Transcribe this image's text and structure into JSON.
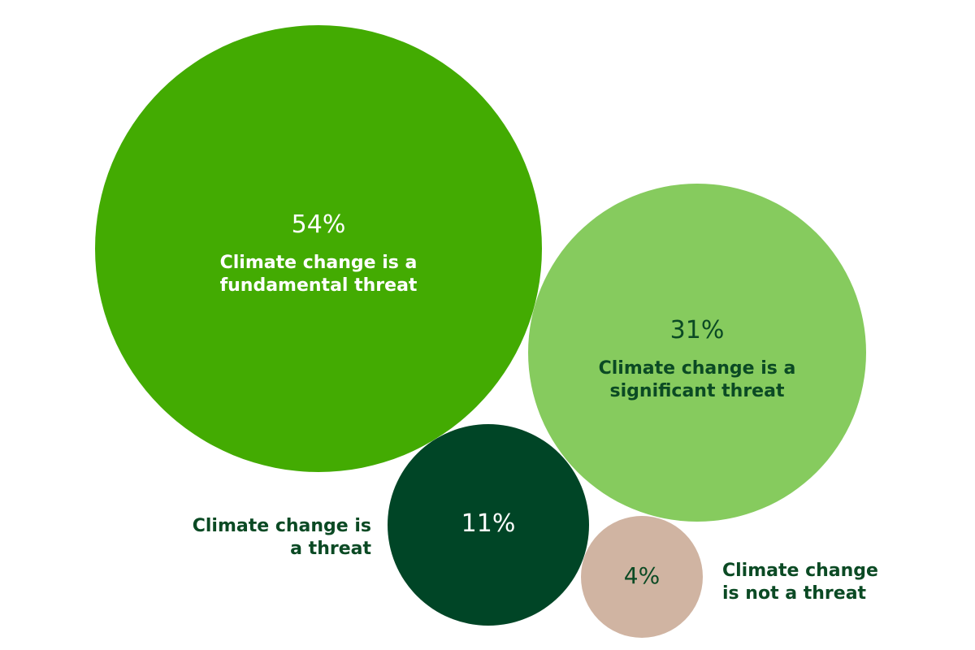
{
  "chart_data": {
    "type": "bubble",
    "unit": "%",
    "series": [
      {
        "id": "fundamental",
        "value": 54,
        "value_label": "54%",
        "category": "Climate change is a fundamental threat",
        "label_lines": [
          "Climate change is a",
          "fundamental threat"
        ],
        "label_position": "inside",
        "fill": "#43ab02",
        "text_color": "#ffffff"
      },
      {
        "id": "significant",
        "value": 31,
        "value_label": "31%",
        "category": "Climate change is a significant threat",
        "label_lines": [
          "Climate change is a",
          "significant threat"
        ],
        "label_position": "inside",
        "fill": "#86cb5e",
        "text_color": "#0b4a24"
      },
      {
        "id": "threat",
        "value": 11,
        "value_label": "11%",
        "category": "Climate change is a threat",
        "label_lines": [
          "Climate change is",
          "a threat"
        ],
        "label_position": "left",
        "fill": "#004526",
        "text_color": "#ffffff",
        "outside_text_color": "#0b4a24"
      },
      {
        "id": "not-threat",
        "value": 4,
        "value_label": "4%",
        "category": "Climate change is not a threat",
        "label_lines": [
          "Climate change",
          "is not a threat"
        ],
        "label_position": "right",
        "fill": "#d0b4a2",
        "text_color": "#0b4a24",
        "outside_text_color": "#0b4a24"
      }
    ]
  }
}
